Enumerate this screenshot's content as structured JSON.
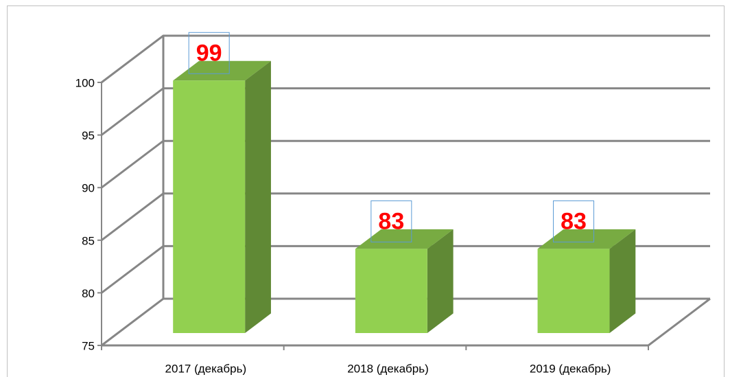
{
  "chart_data": {
    "type": "bar3d",
    "categories": [
      "2017 (декабрь)",
      "2018 (декабрь)",
      "2019 (декабрь)"
    ],
    "values": [
      99,
      83,
      83
    ],
    "color": "#92d050",
    "label_color": "#ff0000",
    "ylim": [
      75,
      100
    ],
    "yticks": [
      75,
      80,
      85,
      90,
      95,
      100
    ],
    "grid": true
  }
}
